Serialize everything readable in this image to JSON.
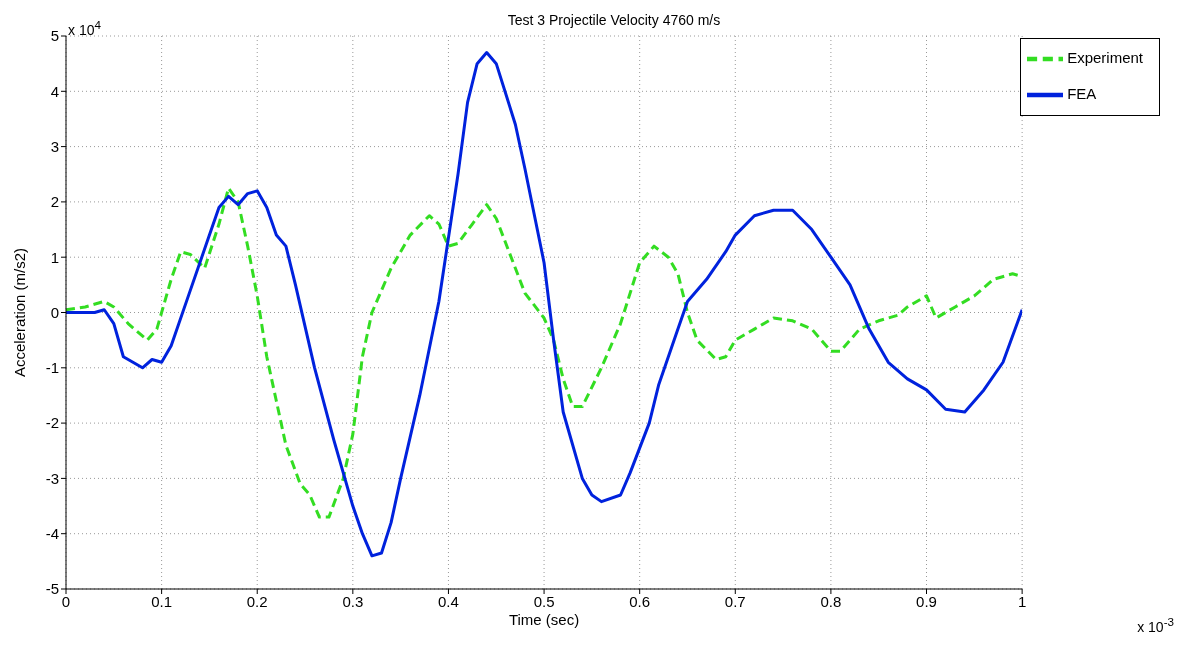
{
  "chart_data": {
    "type": "line",
    "title": "Test 3 Projectile Velocity 4760 m/s",
    "xlabel": "Time (sec)",
    "ylabel": "Acceleration (m/s2)",
    "annotations": [
      "x 10$^{4}$",
      "x 10$^{-3}$"
    ],
    "xlim": [
      0,
      1
    ],
    "xticks": [
      0,
      0.1,
      0.2,
      0.3,
      0.4,
      0.5,
      0.6,
      0.7,
      0.8,
      0.9,
      1
    ],
    "ylim": [
      -5,
      5
    ],
    "yticks": [
      -5,
      -4,
      -3,
      -2,
      -1,
      0,
      1,
      2,
      3,
      4,
      5
    ],
    "grid": true,
    "legend": "top right",
    "marker": "none",
    "series": [
      {
        "name": "Experiment",
        "color": "#33dd22",
        "line_style": "dashed",
        "x": [
          0,
          0.02,
          0.04,
          0.05,
          0.065,
          0.085,
          0.095,
          0.11,
          0.12,
          0.13,
          0.145,
          0.16,
          0.17,
          0.18,
          0.19,
          0.2,
          0.21,
          0.22,
          0.23,
          0.245,
          0.255,
          0.265,
          0.275,
          0.29,
          0.3,
          0.31,
          0.32,
          0.34,
          0.36,
          0.38,
          0.39,
          0.4,
          0.41,
          0.425,
          0.44,
          0.45,
          0.47,
          0.48,
          0.5,
          0.51,
          0.52,
          0.53,
          0.54,
          0.56,
          0.58,
          0.6,
          0.615,
          0.63,
          0.64,
          0.65,
          0.66,
          0.68,
          0.69,
          0.7,
          0.72,
          0.74,
          0.76,
          0.78,
          0.8,
          0.81,
          0.83,
          0.85,
          0.87,
          0.88,
          0.9,
          0.91,
          0.93,
          0.95,
          0.97,
          0.99,
          1
        ],
        "values": [
          0.05,
          0.1,
          0.2,
          0.1,
          -0.2,
          -0.5,
          -0.3,
          0.6,
          1.1,
          1.05,
          0.8,
          1.6,
          2.25,
          2.0,
          1.2,
          0.3,
          -0.8,
          -1.6,
          -2.4,
          -3.1,
          -3.3,
          -3.7,
          -3.7,
          -3.0,
          -2.2,
          -0.8,
          0,
          0.8,
          1.4,
          1.75,
          1.6,
          1.2,
          1.25,
          1.6,
          1.95,
          1.7,
          0.8,
          0.35,
          -0.1,
          -0.5,
          -1.2,
          -1.7,
          -1.7,
          -1.0,
          -0.2,
          0.9,
          1.2,
          1.0,
          0.7,
          0,
          -0.5,
          -0.85,
          -0.8,
          -0.5,
          -0.3,
          -0.1,
          -0.15,
          -0.3,
          -0.7,
          -0.7,
          -0.3,
          -0.15,
          -0.05,
          0.1,
          0.3,
          -0.1,
          0.1,
          0.3,
          0.6,
          0.7,
          0.65
        ]
      },
      {
        "name": "FEA",
        "color": "#0022dd",
        "line_style": "solid",
        "x": [
          0,
          0.03,
          0.04,
          0.05,
          0.06,
          0.07,
          0.08,
          0.09,
          0.1,
          0.11,
          0.13,
          0.15,
          0.16,
          0.17,
          0.18,
          0.19,
          0.2,
          0.21,
          0.22,
          0.23,
          0.24,
          0.26,
          0.28,
          0.3,
          0.31,
          0.32,
          0.33,
          0.34,
          0.35,
          0.37,
          0.39,
          0.41,
          0.42,
          0.43,
          0.44,
          0.45,
          0.47,
          0.48,
          0.5,
          0.51,
          0.52,
          0.54,
          0.55,
          0.56,
          0.58,
          0.59,
          0.61,
          0.62,
          0.63,
          0.64,
          0.65,
          0.67,
          0.69,
          0.7,
          0.72,
          0.74,
          0.76,
          0.78,
          0.8,
          0.82,
          0.84,
          0.86,
          0.88,
          0.9,
          0.92,
          0.94,
          0.96,
          0.98,
          1
        ],
        "values": [
          0,
          0,
          0.05,
          -0.2,
          -0.8,
          -0.9,
          -1.0,
          -0.85,
          -0.9,
          -0.6,
          0.4,
          1.4,
          1.9,
          2.1,
          1.95,
          2.15,
          2.2,
          1.9,
          1.4,
          1.2,
          0.5,
          -1.0,
          -2.3,
          -3.5,
          -4.0,
          -4.4,
          -4.35,
          -3.8,
          -3.0,
          -1.5,
          0.2,
          2.5,
          3.8,
          4.5,
          4.7,
          4.5,
          3.4,
          2.6,
          0.9,
          -0.5,
          -1.8,
          -3.0,
          -3.3,
          -3.42,
          -3.3,
          -2.9,
          -2.0,
          -1.3,
          -0.8,
          -0.3,
          0.2,
          0.6,
          1.1,
          1.4,
          1.75,
          1.85,
          1.85,
          1.5,
          1.0,
          0.5,
          -0.3,
          -0.9,
          -1.2,
          -1.4,
          -1.75,
          -1.8,
          -1.4,
          -0.9,
          0.05
        ]
      }
    ]
  }
}
